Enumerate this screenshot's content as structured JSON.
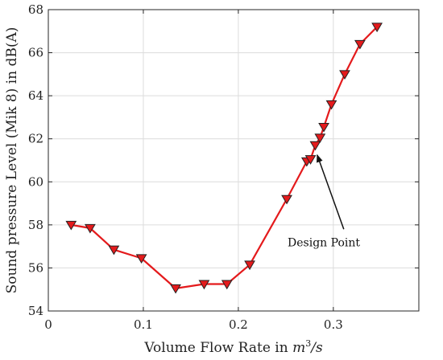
{
  "chart_data": {
    "type": "line",
    "xlabel": "Volume Flow Rate in m³/s",
    "xlabel_parts": {
      "prefix": "Volume Flow Rate in ",
      "m": "m",
      "exp": "3",
      "suffix": "/s"
    },
    "ylabel": "Sound pressure Level (Mik 8) in dB(A)",
    "xlim": [
      0,
      0.39
    ],
    "ylim": [
      54,
      68
    ],
    "x_ticks": [
      0,
      0.1,
      0.2,
      0.3
    ],
    "x_tick_labels": [
      "0",
      "0.1",
      "0.2",
      "0.3"
    ],
    "y_ticks": [
      54,
      56,
      58,
      60,
      62,
      64,
      66,
      68
    ],
    "y_tick_labels": [
      "54",
      "56",
      "58",
      "60",
      "62",
      "64",
      "66",
      "68"
    ],
    "grid": true,
    "series": [
      {
        "color": "#e41a1c",
        "marker": "triangle-down",
        "x": [
          0.024,
          0.044,
          0.069,
          0.098,
          0.134,
          0.164,
          0.188,
          0.212,
          0.251,
          0.272,
          0.276,
          0.281,
          0.286,
          0.29,
          0.298,
          0.312,
          0.328,
          0.346
        ],
        "y": [
          58.0,
          57.85,
          56.85,
          56.45,
          55.05,
          55.25,
          55.25,
          56.15,
          59.2,
          60.95,
          61.05,
          61.7,
          62.05,
          62.55,
          63.6,
          65.0,
          66.4,
          67.2
        ]
      }
    ],
    "annotations": [
      {
        "text": "Design Point",
        "text_x": 0.29,
        "text_y": 57.0,
        "arrow_to_x": 0.283,
        "arrow_to_y": 61.25,
        "arrow_from_x": 0.311,
        "arrow_from_y": 57.8
      }
    ]
  }
}
